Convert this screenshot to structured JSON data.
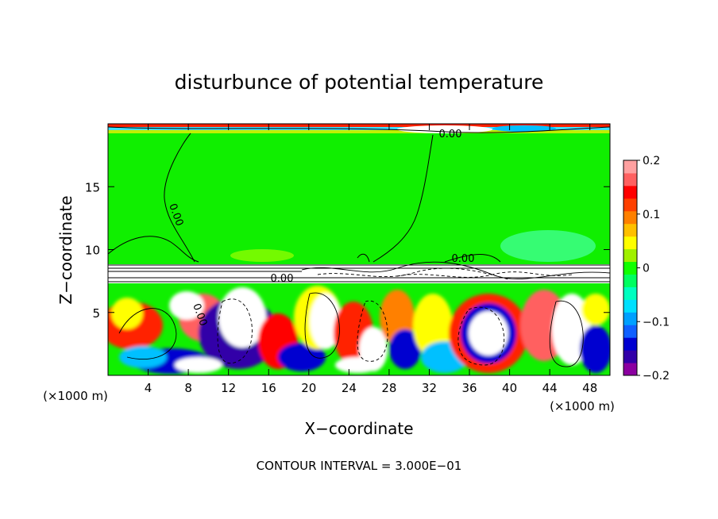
{
  "chart_data": {
    "type": "heatmap",
    "title": "disturbunce of potential temperature",
    "xlabel": "X−coordinate",
    "ylabel": "Z−coordinate",
    "x_units": "(×1000 m)",
    "x_units_right": "(×1000 m)",
    "xlim": [
      0,
      50
    ],
    "ylim": [
      0,
      20
    ],
    "x_ticks": [
      4,
      8,
      12,
      16,
      20,
      24,
      28,
      32,
      36,
      40,
      44,
      48
    ],
    "y_ticks": [
      5,
      10,
      15
    ],
    "colorbar": {
      "range": [
        -0.2,
        0.2
      ],
      "tick_values": [
        0.2,
        0.1,
        0,
        -0.1,
        -0.2
      ],
      "tick_labels": [
        "0.2",
        "0.1",
        "0",
        "−0.1",
        "−0.2"
      ],
      "colors": [
        "#8b00a0",
        "#3200a8",
        "#0000d0",
        "#1060ff",
        "#00a0ff",
        "#00e0ff",
        "#00ffc0",
        "#00ff60",
        "#10ff00",
        "#a0f000",
        "#ffff00",
        "#ffc000",
        "#ff8000",
        "#ff4000",
        "#ff0000",
        "#ff6060",
        "#ffa0a0"
      ]
    },
    "contour_labels": [
      "0.00",
      "0.00",
      "0.00",
      "0.00",
      "0.00"
    ],
    "footer": "CONTOUR INTERVAL = 3.000E−01"
  }
}
